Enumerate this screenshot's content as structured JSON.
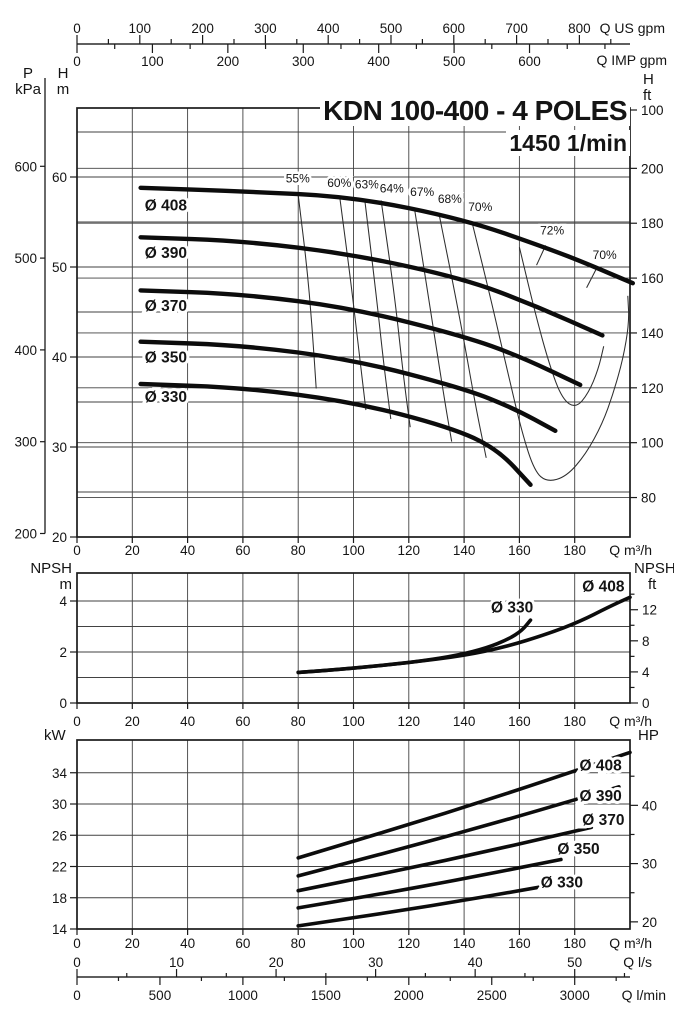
{
  "title": "KDN 100-400 - 4 POLES",
  "subtitle": "1450 1/min",
  "corners": {
    "pressure": [
      "P",
      "kPa"
    ],
    "head_m": [
      "H",
      "m"
    ],
    "head_ft": [
      "H",
      "ft"
    ],
    "npsh_m": [
      "NPSH",
      "m"
    ],
    "npsh_ft": [
      "NPSH",
      "ft"
    ],
    "power_kw": [
      "kW"
    ],
    "power_hp": [
      "HP"
    ]
  },
  "units": {
    "m3h": "Q m³/h",
    "us": "Q US gpm",
    "imp": "Q IMP gpm",
    "ls": "Q l/s",
    "lmin": "Q l/min"
  },
  "colors": {
    "ink": "#141414",
    "grid": "#424242",
    "background": "#ffffff"
  },
  "chart_data": [
    {
      "type": "line",
      "name": "head-flow-curves",
      "title": "KDN 100-400 - 4 POLES",
      "subtitle": "1450 1/min",
      "xlabel": "Q m³/h",
      "x_range_m3h": [
        0,
        200
      ],
      "x_ticks": [
        0,
        20,
        40,
        60,
        80,
        100,
        120,
        140,
        160,
        180
      ],
      "top_axes": [
        {
          "unit": "Q US gpm",
          "labels": [
            0,
            100,
            200,
            300,
            400,
            500,
            600,
            700,
            800
          ],
          "m3h_per_unit": 0.22712,
          "minor_step": 50,
          "tick_max": 850
        },
        {
          "unit": "Q IMP gpm",
          "labels": [
            0,
            100,
            200,
            300,
            400,
            500,
            600
          ],
          "m3h_per_unit": 0.27277,
          "minor_step": 50,
          "tick_max": 700
        }
      ],
      "y_left_m": {
        "unit": "m",
        "labels": [
          60,
          50,
          40,
          30,
          20
        ],
        "grid_every_5m": [
          25,
          30,
          35,
          40,
          45,
          50,
          55,
          60,
          65
        ],
        "range": [
          20,
          67.7
        ]
      },
      "y_left_kpa": {
        "unit": "kPa",
        "labels": [
          600,
          500,
          400,
          300,
          200
        ]
      },
      "y_right_ft": {
        "unit": "ft",
        "labels": [
          200,
          180,
          160,
          140,
          120,
          100,
          80
        ],
        "grid": [
          80,
          100,
          120,
          140,
          160,
          180,
          200
        ],
        "top_extra_label": "100"
      },
      "series": [
        {
          "name": "Ø 408",
          "label_at": [
            24.5,
            56.3
          ],
          "points": [
            [
              23,
              58.8
            ],
            [
              60,
              58.4
            ],
            [
              100,
              57.8
            ],
            [
              140,
              55.3
            ],
            [
              170,
              52.1
            ],
            [
              185,
              50.3
            ],
            [
              201,
              48.2
            ]
          ]
        },
        {
          "name": "Ø 390",
          "label_at": [
            24.5,
            51.0
          ],
          "points": [
            [
              23,
              53.3
            ],
            [
              60,
              52.9
            ],
            [
              100,
              51.4
            ],
            [
              140,
              48.7
            ],
            [
              165,
              45.8
            ],
            [
              190,
              42.4
            ]
          ]
        },
        {
          "name": "Ø 370",
          "label_at": [
            24.5,
            45.1
          ],
          "points": [
            [
              23,
              47.4
            ],
            [
              60,
              47.0
            ],
            [
              100,
              45.4
            ],
            [
              140,
              42.3
            ],
            [
              160,
              40.1
            ],
            [
              182,
              36.9
            ]
          ]
        },
        {
          "name": "Ø 350",
          "label_at": [
            24.5,
            39.4
          ],
          "points": [
            [
              23,
              41.7
            ],
            [
              60,
              41.3
            ],
            [
              100,
              39.7
            ],
            [
              140,
              36.5
            ],
            [
              158,
              34.3
            ],
            [
              173,
              31.8
            ]
          ]
        },
        {
          "name": "Ø 330",
          "label_at": [
            24.5,
            35.0
          ],
          "points": [
            [
              23,
              37.0
            ],
            [
              60,
              36.6
            ],
            [
              100,
              35.0
            ],
            [
              135,
              32.2
            ],
            [
              152,
              29.8
            ],
            [
              164,
              25.8
            ]
          ]
        }
      ],
      "efficiency": [
        {
          "label": "55%",
          "label_at": [
            75.5,
            59.4
          ],
          "points": [
            [
              80,
              58.0
            ],
            [
              83,
              50.5
            ],
            [
              85,
              43.5
            ],
            [
              86.5,
              36.5
            ]
          ]
        },
        {
          "label": "60%",
          "label_at": [
            90.5,
            58.9
          ],
          "points": [
            [
              95,
              57.8
            ],
            [
              99,
              48.5
            ],
            [
              102,
              40.5
            ],
            [
              104.5,
              34.1
            ]
          ]
        },
        {
          "label": "63%",
          "label_at": [
            100.5,
            58.7
          ],
          "points": [
            [
              104,
              57.6
            ],
            [
              108,
              47.5
            ],
            [
              111,
              39.0
            ],
            [
              113.5,
              33.1
            ]
          ]
        },
        {
          "label": "64%",
          "label_at": [
            109.5,
            58.3
          ],
          "points": [
            [
              110,
              57.4
            ],
            [
              115,
              46.5
            ],
            [
              118,
              38.0
            ],
            [
              120.5,
              32.2
            ]
          ]
        },
        {
          "label": "67%",
          "label_at": [
            120.5,
            57.9
          ],
          "points": [
            [
              122,
              56.6
            ],
            [
              128,
              45.0
            ],
            [
              132.5,
              36.0
            ],
            [
              135.5,
              30.6
            ]
          ]
        },
        {
          "label": "68%",
          "label_at": [
            130.5,
            57.1
          ],
          "points": [
            [
              131,
              55.8
            ],
            [
              139,
              43.5
            ],
            [
              144.5,
              34.0
            ],
            [
              148,
              28.8
            ]
          ]
        },
        {
          "label": "70%",
          "label_at": [
            141.5,
            56.2
          ],
          "points": [
            [
              143,
              54.8
            ],
            [
              150,
              46.0
            ],
            [
              156,
              38.0
            ],
            [
              161,
              31.5
            ],
            [
              165.5,
              27.3
            ],
            [
              170,
              26.1
            ],
            [
              177,
              26.7
            ],
            [
              184,
              29.2
            ],
            [
              190,
              32.6
            ],
            [
              194,
              36.0
            ],
            [
              197.5,
              39.8
            ],
            [
              199.7,
              43.8
            ],
            [
              199.2,
              46.8
            ]
          ]
        },
        {
          "label": "72%",
          "label_at": [
            167.5,
            53.6
          ],
          "points": [
            [
              160,
              52.2
            ],
            [
              166,
              44.5
            ],
            [
              171,
              39.0
            ],
            [
              175.5,
              35.3
            ],
            [
              180.5,
              34.3
            ],
            [
              185,
              36.0
            ],
            [
              188.5,
              38.6
            ],
            [
              190.5,
              41.2
            ]
          ],
          "leader": [
            [
              169.5,
              52.4
            ],
            [
              166.2,
              50.2
            ]
          ]
        },
        {
          "label": "70%",
          "label_at": [
            186.5,
            50.9
          ],
          "points": [],
          "leader": [
            [
              188,
              49.9
            ],
            [
              184.3,
              47.7
            ]
          ]
        }
      ]
    },
    {
      "type": "line",
      "name": "npsh-curves",
      "xlabel": "Q m³/h",
      "x_ticks": [
        0,
        20,
        40,
        60,
        80,
        100,
        120,
        140,
        160,
        180
      ],
      "y_left_m": {
        "unit": "m",
        "labels": [
          4,
          2,
          0
        ],
        "grid": [
          1,
          2,
          3,
          4
        ],
        "range": [
          0,
          5.1
        ]
      },
      "y_right_ft": {
        "unit": "ft",
        "labels": [
          12,
          8,
          4,
          0
        ],
        "minor_ticks": [
          14,
          10,
          6,
          2
        ]
      },
      "series": [
        {
          "name": "Ø 408",
          "label_at": [
            198,
            4.38
          ],
          "points": [
            [
              80,
              1.2
            ],
            [
              100,
              1.36
            ],
            [
              120,
              1.58
            ],
            [
              140,
              1.86
            ],
            [
              155,
              2.2
            ],
            [
              170,
              2.7
            ],
            [
              182,
              3.2
            ],
            [
              192,
              3.75
            ],
            [
              200,
              4.15
            ]
          ]
        },
        {
          "name": "Ø 330",
          "label_at": [
            165,
            3.55
          ],
          "points": [
            [
              80,
              1.2
            ],
            [
              95,
              1.32
            ],
            [
              110,
              1.47
            ],
            [
              125,
              1.65
            ],
            [
              138,
              1.88
            ],
            [
              148,
              2.15
            ],
            [
              156,
              2.5
            ],
            [
              161,
              2.85
            ],
            [
              164,
              3.25
            ]
          ]
        }
      ]
    },
    {
      "type": "line",
      "name": "power-curves",
      "xlabel": "Q m³/h",
      "x_ticks": [
        0,
        20,
        40,
        60,
        80,
        100,
        120,
        140,
        160,
        180
      ],
      "y_left_kw": {
        "unit": "kW",
        "labels": [
          34,
          30,
          26,
          22,
          18,
          14
        ],
        "grid": [
          18,
          22,
          26,
          30,
          34
        ],
        "range": [
          14,
          38.2
        ]
      },
      "y_right_hp": {
        "unit": "HP",
        "labels": [
          40,
          30,
          20
        ],
        "minor_ticks": [
          45,
          35,
          25
        ],
        "kw_per_hp": 0.7457
      },
      "series": [
        {
          "name": "Ø 408",
          "label_at": [
            197,
            34.3
          ],
          "points": [
            [
              80,
              23.1
            ],
            [
              140,
              29.5
            ],
            [
              200,
              36.6
            ]
          ]
        },
        {
          "name": "Ø 390",
          "label_at": [
            197,
            30.4
          ],
          "points": [
            [
              80,
              20.8
            ],
            [
              138,
              26.2
            ],
            [
              196,
              32.2
            ]
          ]
        },
        {
          "name": "Ø 370",
          "label_at": [
            198,
            27.3
          ],
          "points": [
            [
              80,
              18.9
            ],
            [
              133,
              22.7
            ],
            [
              186,
              27.0
            ]
          ]
        },
        {
          "name": "Ø 350",
          "label_at": [
            189,
            23.6
          ],
          "points": [
            [
              80,
              16.7
            ],
            [
              128,
              19.6
            ],
            [
              175,
              22.9
            ]
          ]
        },
        {
          "name": "Ø 330",
          "label_at": [
            183,
            19.3
          ],
          "points": [
            [
              80,
              14.4
            ],
            [
              124,
              16.7
            ],
            [
              168,
              19.4
            ]
          ]
        }
      ],
      "bottom_axes": [
        {
          "unit": "Q l/s",
          "labels": [
            0,
            10,
            20,
            30,
            40,
            50
          ],
          "m3h_per_unit": 3.6,
          "minor_step": 5,
          "tick_max": 55
        },
        {
          "unit": "Q l/min",
          "labels": [
            0,
            500,
            1000,
            1500,
            2000,
            2500,
            3000
          ],
          "m3h_per_unit": 0.06,
          "minor_step": 250,
          "tick_max": 3250
        }
      ]
    }
  ]
}
